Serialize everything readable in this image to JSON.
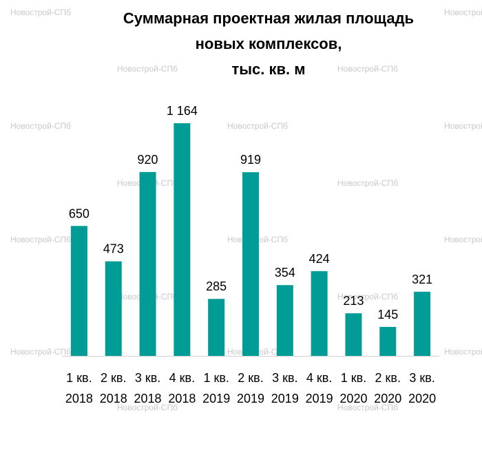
{
  "chart_data": {
    "type": "bar",
    "title_lines": [
      "Суммарная проектная жилая  площадь",
      "новых комплексов,",
      "тыс. кв. м"
    ],
    "categories": [
      [
        "1 кв.",
        "2018"
      ],
      [
        "2 кв.",
        "2018"
      ],
      [
        "3 кв.",
        "2018"
      ],
      [
        "4 кв.",
        "2018"
      ],
      [
        "1 кв.",
        "2019"
      ],
      [
        "2 кв.",
        "2019"
      ],
      [
        "3 кв.",
        "2019"
      ],
      [
        "4 кв.",
        "2019"
      ],
      [
        "1 кв.",
        "2020"
      ],
      [
        "2 кв.",
        "2020"
      ],
      [
        "3 кв.",
        "2020"
      ]
    ],
    "values": [
      650,
      473,
      920,
      1164,
      285,
      919,
      354,
      424,
      213,
      145,
      321
    ],
    "data_labels": [
      "650",
      "473",
      "920",
      "1 164",
      "285",
      "919",
      "354",
      "424",
      "213",
      "145",
      "321"
    ],
    "ylim": [
      0,
      1164
    ],
    "grid": false,
    "bar_color": "#009c95",
    "watermark": "Новострой-СПб"
  }
}
